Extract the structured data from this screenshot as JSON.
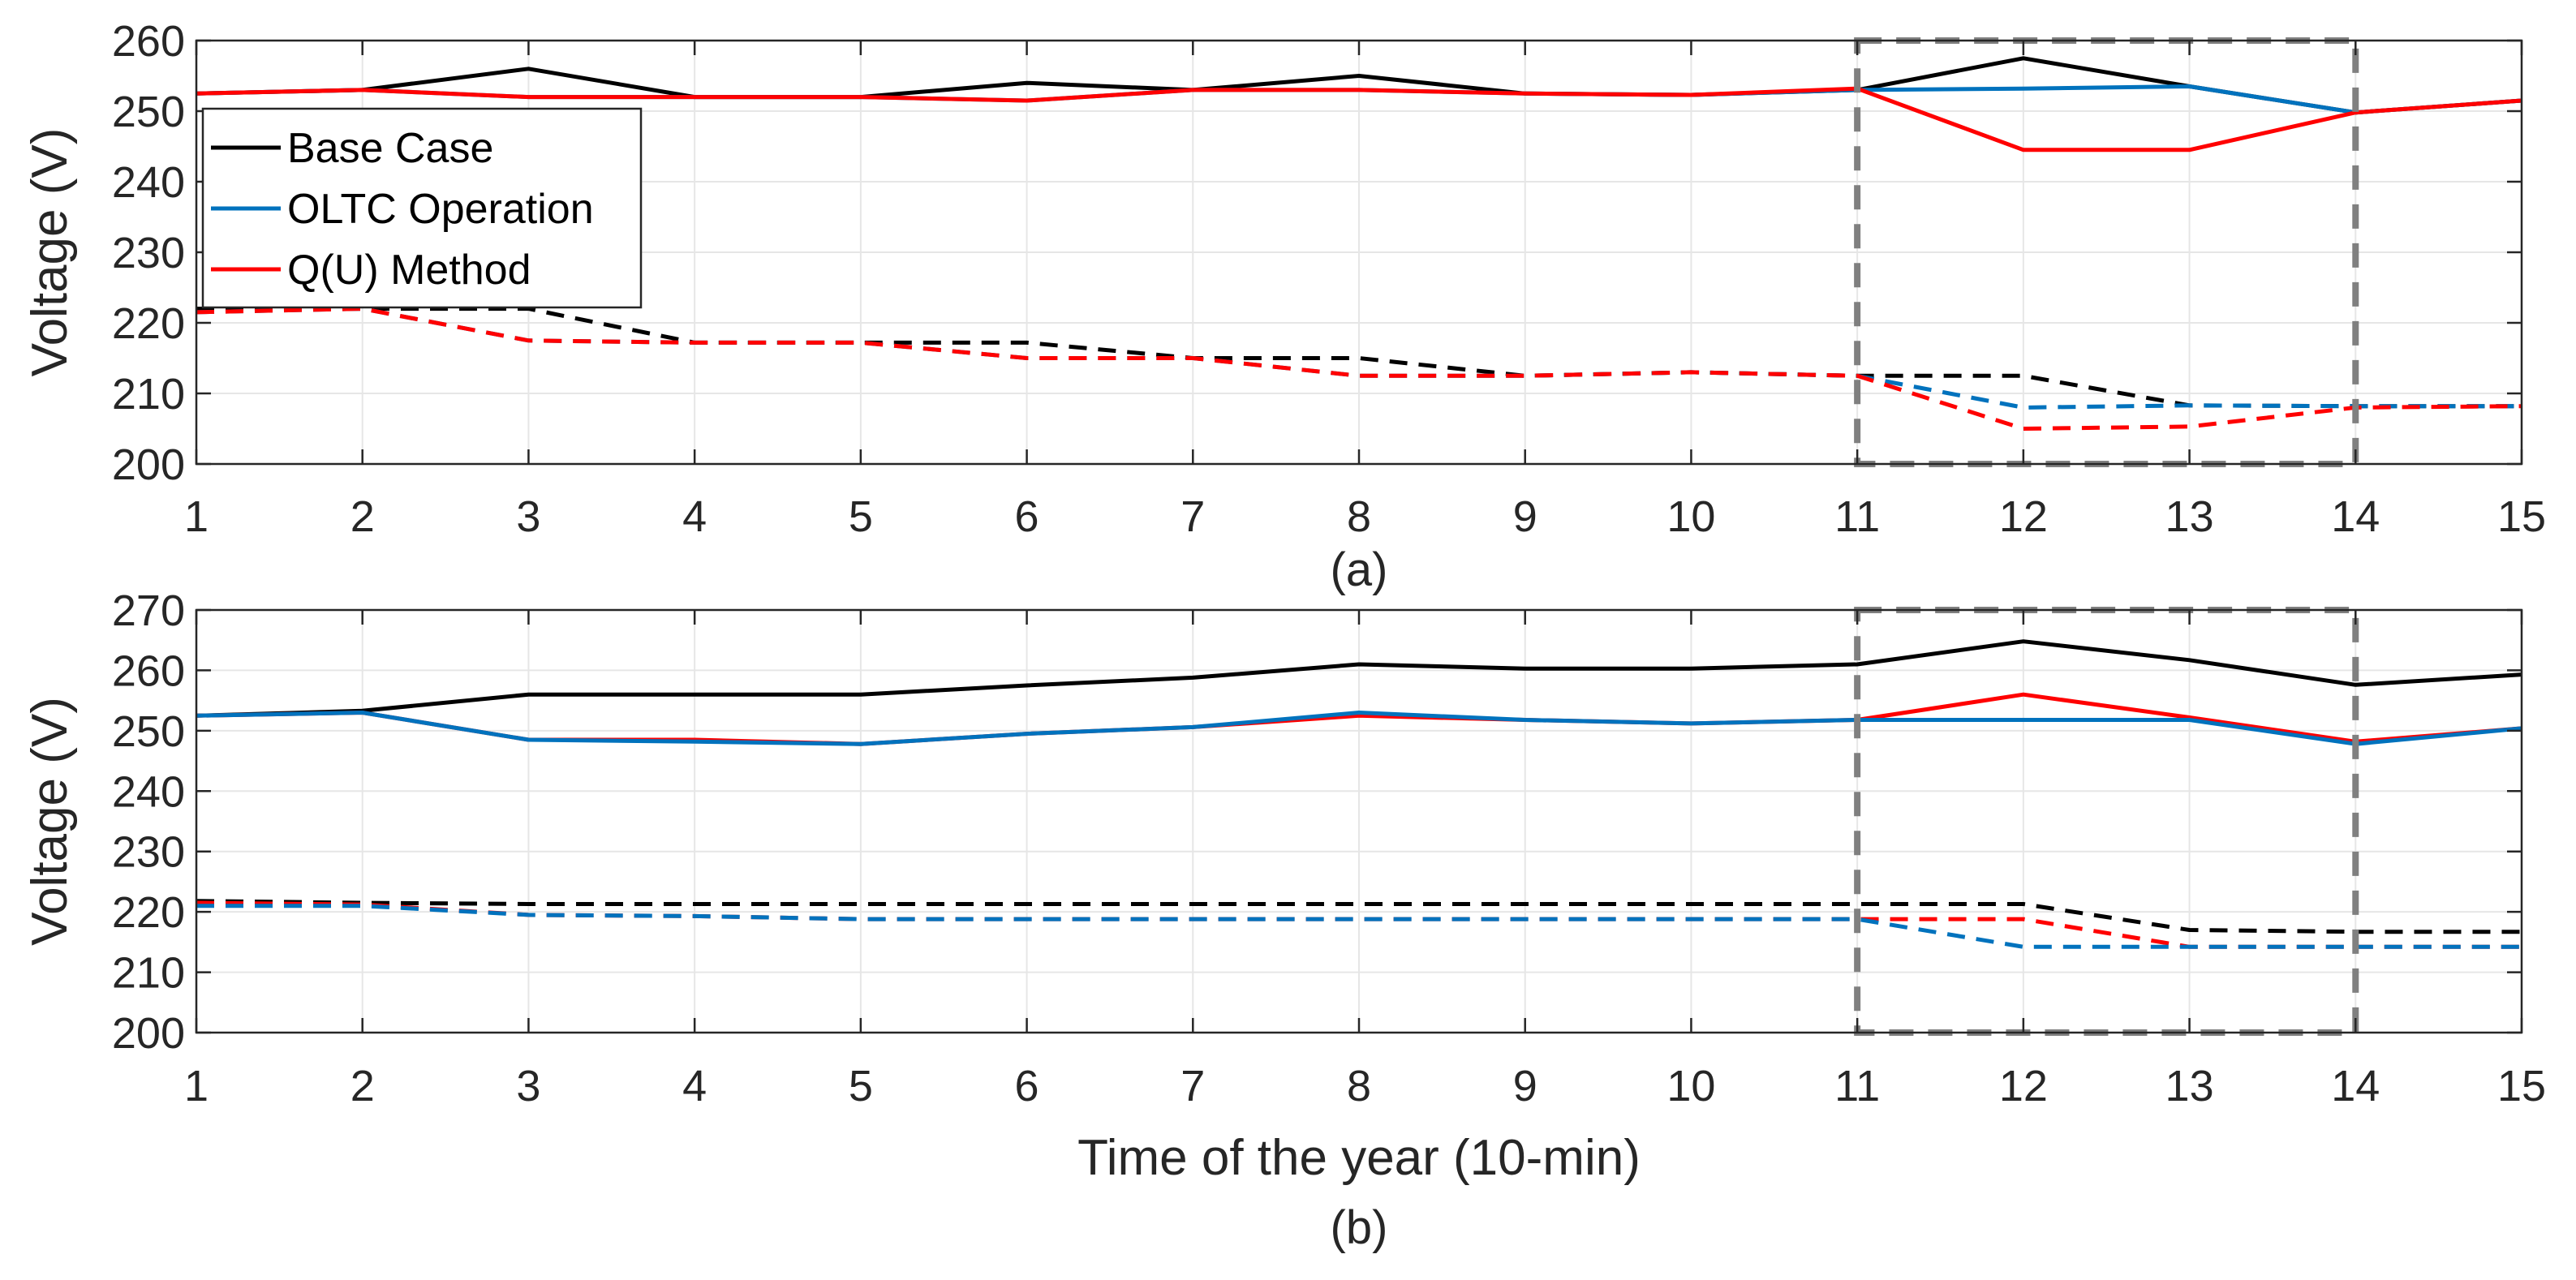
{
  "colors": {
    "base_case": "#000000",
    "oltc": "#0072BD",
    "qu": "#FF0000",
    "highlight_box": "#808080",
    "grid": "#e6e6e6",
    "axis": "#262626"
  },
  "chart_data": [
    {
      "type": "line",
      "caption": "(a)",
      "ylabel": "Voltage (V)",
      "xlabel": "",
      "xlim": [
        1,
        15
      ],
      "ylim": [
        200,
        260
      ],
      "xticks": [
        1,
        2,
        3,
        4,
        5,
        6,
        7,
        8,
        9,
        10,
        11,
        12,
        13,
        14,
        15
      ],
      "yticks": [
        200,
        210,
        220,
        230,
        240,
        250,
        260
      ],
      "grid": true,
      "legend": {
        "position": "top-left",
        "entries": [
          {
            "label": "Base Case",
            "color_key": "base_case"
          },
          {
            "label": "OLTC Operation",
            "color_key": "oltc"
          },
          {
            "label": "Q(U) Method",
            "color_key": "qu"
          }
        ]
      },
      "highlight_box": {
        "x": [
          11,
          14
        ],
        "y": [
          200,
          260
        ]
      },
      "series": [
        {
          "name": "Base Case",
          "style": "solid",
          "color_key": "base_case",
          "x": [
            1,
            2,
            3,
            4,
            5,
            6,
            7,
            8,
            9,
            10,
            11,
            12,
            13,
            14,
            15
          ],
          "values": [
            252.5,
            253,
            256,
            252,
            252,
            254,
            253,
            255,
            252.5,
            252.3,
            253,
            257.5,
            253.5,
            249.8,
            251.5
          ]
        },
        {
          "name": "OLTC Operation",
          "style": "solid",
          "color_key": "oltc",
          "x": [
            1,
            2,
            3,
            4,
            5,
            6,
            7,
            8,
            9,
            10,
            11,
            12,
            13,
            14,
            15
          ],
          "values": [
            252.5,
            253,
            252,
            252,
            252,
            251.5,
            253,
            253,
            252.5,
            252.3,
            253,
            253.2,
            253.5,
            249.8,
            251.5
          ]
        },
        {
          "name": "Q(U) Method",
          "style": "solid",
          "color_key": "qu",
          "x": [
            1,
            2,
            3,
            4,
            5,
            6,
            7,
            8,
            9,
            10,
            11,
            12,
            13,
            14,
            15
          ],
          "values": [
            252.5,
            253,
            252,
            252,
            252,
            251.5,
            253,
            253,
            252.5,
            252.3,
            253.2,
            244.5,
            244.5,
            249.8,
            251.5
          ]
        },
        {
          "name": "Base Case (min)",
          "style": "dashed",
          "color_key": "base_case",
          "x": [
            1,
            2,
            3,
            4,
            5,
            6,
            7,
            8,
            9,
            10,
            11,
            12,
            13,
            14,
            15
          ],
          "values": [
            222,
            222,
            222,
            217.2,
            217.2,
            217.2,
            215,
            215,
            212.5,
            213,
            212.5,
            212.5,
            208.3,
            208.2,
            208.2
          ]
        },
        {
          "name": "OLTC Operation (min)",
          "style": "dashed",
          "color_key": "oltc",
          "x": [
            1,
            2,
            3,
            4,
            5,
            6,
            7,
            8,
            9,
            10,
            11,
            12,
            13,
            14,
            15
          ],
          "values": [
            221.5,
            222,
            217.5,
            217.2,
            217.2,
            215,
            215,
            212.5,
            212.5,
            213,
            212.5,
            208,
            208.3,
            208.2,
            208.2
          ]
        },
        {
          "name": "Q(U) Method (min)",
          "style": "dashed",
          "color_key": "qu",
          "x": [
            1,
            2,
            3,
            4,
            5,
            6,
            7,
            8,
            9,
            10,
            11,
            12,
            13,
            14,
            15
          ],
          "values": [
            221.5,
            222,
            217.5,
            217.2,
            217.2,
            215,
            215,
            212.5,
            212.5,
            213,
            212.5,
            205,
            205.3,
            208,
            208.2
          ]
        }
      ]
    },
    {
      "type": "line",
      "caption": "(b)",
      "ylabel": "Voltage (V)",
      "xlabel": "Time of the year (10-min)",
      "xlim": [
        1,
        15
      ],
      "ylim": [
        200,
        270
      ],
      "xticks": [
        1,
        2,
        3,
        4,
        5,
        6,
        7,
        8,
        9,
        10,
        11,
        12,
        13,
        14,
        15
      ],
      "yticks": [
        200,
        210,
        220,
        230,
        240,
        250,
        260,
        270
      ],
      "grid": true,
      "highlight_box": {
        "x": [
          11,
          14
        ],
        "y": [
          200,
          270
        ]
      },
      "series": [
        {
          "name": "Base Case",
          "style": "solid",
          "color_key": "base_case",
          "x": [
            1,
            2,
            3,
            4,
            5,
            6,
            7,
            8,
            9,
            10,
            11,
            12,
            13,
            14,
            15
          ],
          "values": [
            252.5,
            253.3,
            256,
            256,
            256,
            257.5,
            258.8,
            261,
            260.3,
            260.3,
            261,
            264.8,
            261.7,
            257.6,
            259.3
          ]
        },
        {
          "name": "Q(U) Method",
          "style": "solid",
          "color_key": "qu",
          "x": [
            1,
            2,
            3,
            4,
            5,
            6,
            7,
            8,
            9,
            10,
            11,
            12,
            13,
            14,
            15
          ],
          "values": [
            252.5,
            253,
            248.5,
            248.5,
            247.8,
            249.5,
            250.6,
            252.5,
            251.8,
            251.2,
            251.8,
            256,
            252.2,
            248.2,
            250.4
          ]
        },
        {
          "name": "OLTC Operation",
          "style": "solid",
          "color_key": "oltc",
          "x": [
            1,
            2,
            3,
            4,
            5,
            6,
            7,
            8,
            9,
            10,
            11,
            12,
            13,
            14,
            15
          ],
          "values": [
            252.5,
            253,
            248.5,
            248.2,
            247.8,
            249.5,
            250.6,
            253,
            251.8,
            251.2,
            251.8,
            251.8,
            251.8,
            247.8,
            250.4
          ]
        },
        {
          "name": "Base Case (min)",
          "style": "dashed",
          "color_key": "base_case",
          "x": [
            1,
            2,
            3,
            4,
            5,
            6,
            7,
            8,
            9,
            10,
            11,
            12,
            13,
            14,
            15
          ],
          "values": [
            221.8,
            221.5,
            221.3,
            221.3,
            221.3,
            221.3,
            221.3,
            221.3,
            221.3,
            221.3,
            221.3,
            221.3,
            217,
            216.7,
            216.7
          ]
        },
        {
          "name": "Q(U) Method (min)",
          "style": "dashed",
          "color_key": "qu",
          "x": [
            1,
            2,
            3,
            4,
            5,
            6,
            7,
            8,
            9,
            10,
            11,
            12,
            13,
            14,
            15
          ],
          "values": [
            221.5,
            221.2,
            219.5,
            219.3,
            218.8,
            218.8,
            218.8,
            218.8,
            218.8,
            218.8,
            218.8,
            218.8,
            214.2,
            214.2,
            214.2
          ]
        },
        {
          "name": "OLTC Operation (min)",
          "style": "dashed",
          "color_key": "oltc",
          "x": [
            1,
            2,
            3,
            4,
            5,
            6,
            7,
            8,
            9,
            10,
            11,
            12,
            13,
            14,
            15
          ],
          "values": [
            221,
            221,
            219.5,
            219.3,
            218.8,
            218.8,
            218.8,
            218.8,
            218.8,
            218.8,
            218.8,
            214.2,
            214.2,
            214.2,
            214.2
          ]
        }
      ]
    }
  ]
}
